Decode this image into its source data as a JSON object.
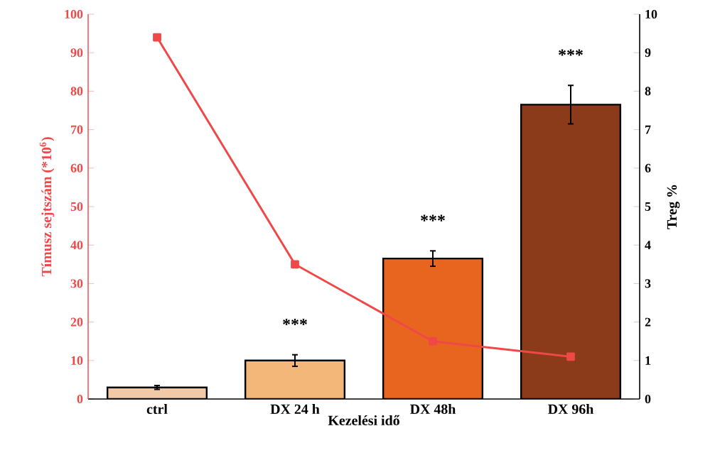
{
  "chart_data": {
    "type": "bar",
    "xlabel": "Kezelési idő",
    "ylabel": "Tímusz sejtszám (*10$^{6}$)",
    "y2label": "Treg %",
    "categories": [
      "ctrl",
      "DX 24 h",
      "DX 48h",
      "DX 96h"
    ],
    "series": [
      {
        "colors": [
          "#f2c9a6",
          "#f4b77a",
          "#e8651f",
          "#8c3b1a"
        ],
        "values": [
          3,
          10,
          36.5,
          76.5
        ],
        "errors": [
          0.5,
          1.5,
          2,
          5
        ]
      },
      {
        "type": "line",
        "axis": "y2",
        "color": "#f04848",
        "values": [
          9.4,
          3.5,
          1.5,
          1.1
        ],
        "marker": "square"
      }
    ],
    "ylim": [
      0,
      100
    ],
    "yticks": [
      0,
      10,
      20,
      30,
      40,
      50,
      60,
      70,
      80,
      90,
      100
    ],
    "y2lim": [
      0,
      10
    ],
    "y2ticks": [
      0,
      1,
      2,
      3,
      4,
      5,
      6,
      7,
      8,
      9,
      10
    ],
    "grid": false,
    "legend": false,
    "annotations": [
      "***",
      "***",
      "***"
    ]
  }
}
